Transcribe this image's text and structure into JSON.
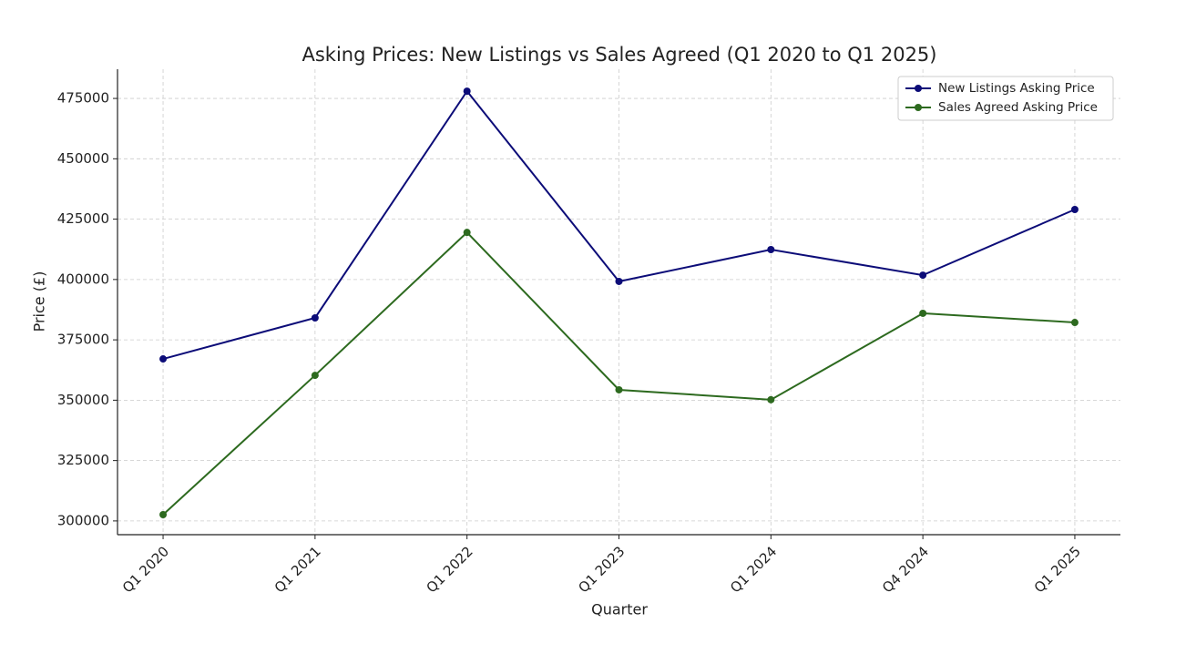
{
  "chart_data": {
    "type": "line",
    "title": "Asking Prices: New Listings vs Sales Agreed (Q1 2020 to Q1 2025)",
    "x_label": "Quarter",
    "y_label": "Price (£)",
    "categories": [
      "Q1 2020",
      "Q1 2021",
      "Q1 2022",
      "Q1 2023",
      "Q1 2024",
      "Q4 2024",
      "Q1 2025"
    ],
    "series": [
      {
        "name": "New Listings Asking Price",
        "color": "#0c0c78",
        "values": [
          367100,
          384100,
          478000,
          399200,
          412400,
          401800,
          429000
        ]
      },
      {
        "name": "Sales Agreed Asking Price",
        "color": "#2d6a1f",
        "values": [
          302600,
          360300,
          419500,
          354300,
          350200,
          386000,
          382200
        ]
      }
    ],
    "ylim": [
      294300,
      487100
    ],
    "yticks": [
      300000,
      325000,
      350000,
      375000,
      400000,
      425000,
      450000,
      475000
    ],
    "grid": true,
    "legend": "upper right"
  }
}
